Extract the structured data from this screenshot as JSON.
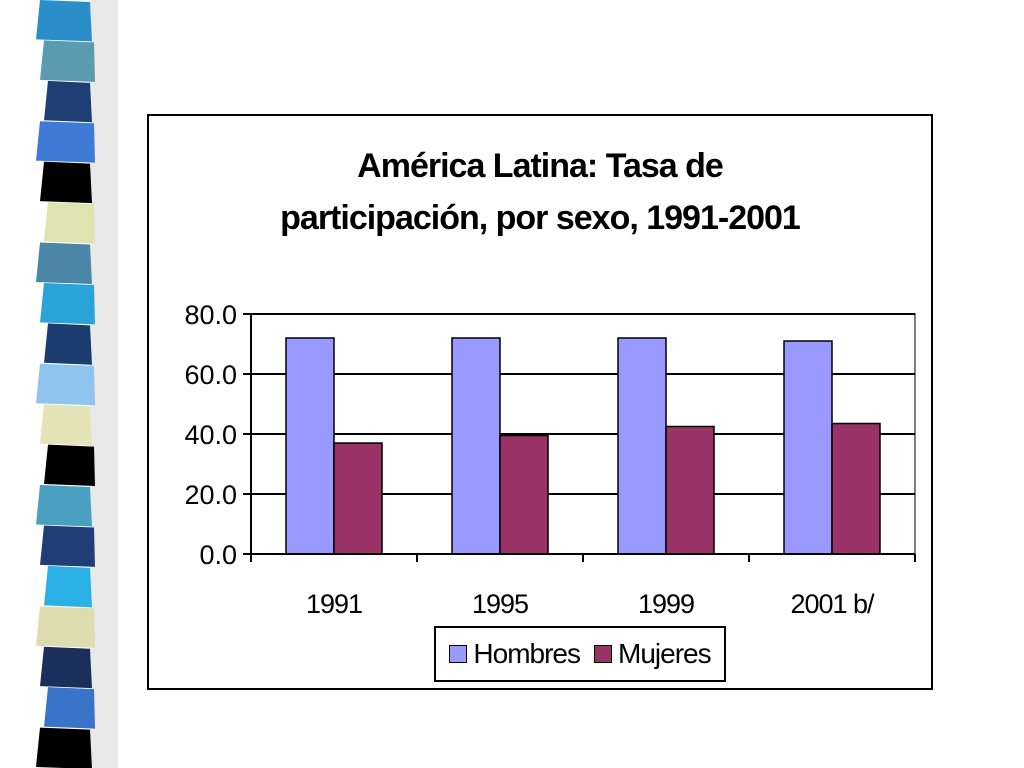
{
  "colors": {
    "hombres": "#9999FF",
    "mujeres": "#993366",
    "deco_strip": [
      "#2a8fc9",
      "#5b9bb0",
      "#1e3e74",
      "#3f7ad6",
      "#000000",
      "#dfe3b0",
      "#4c86a6",
      "#2aa4d8",
      "#1b3c6e",
      "#8fc4ee",
      "#e4e4b8",
      "#000000",
      "#4aa0c0",
      "#1f3e78",
      "#2bb0e6",
      "#dcdcae",
      "#1a2f5c",
      "#3a74c8",
      "#000000"
    ]
  },
  "chart_data": {
    "type": "bar",
    "title": "América Latina: Tasa de participación, por sexo, 1991-2001",
    "title_lines": [
      "América Latina: Tasa de",
      "participación, por sexo, 1991-2001"
    ],
    "categories": [
      "1991",
      "1995",
      "1999",
      "2001 b/"
    ],
    "series": [
      {
        "name": "Hombres",
        "values": [
          72.0,
          72.0,
          72.0,
          71.0
        ]
      },
      {
        "name": "Mujeres",
        "values": [
          37.0,
          39.5,
          42.5,
          43.5
        ]
      }
    ],
    "ylim": [
      0,
      80
    ],
    "yticks": [
      "0.0",
      "20.0",
      "40.0",
      "60.0",
      "80.0"
    ],
    "ytick_values": [
      0,
      20,
      40,
      60,
      80
    ],
    "grid": true,
    "legend": "bottom-center",
    "xlabel": "",
    "ylabel": ""
  }
}
